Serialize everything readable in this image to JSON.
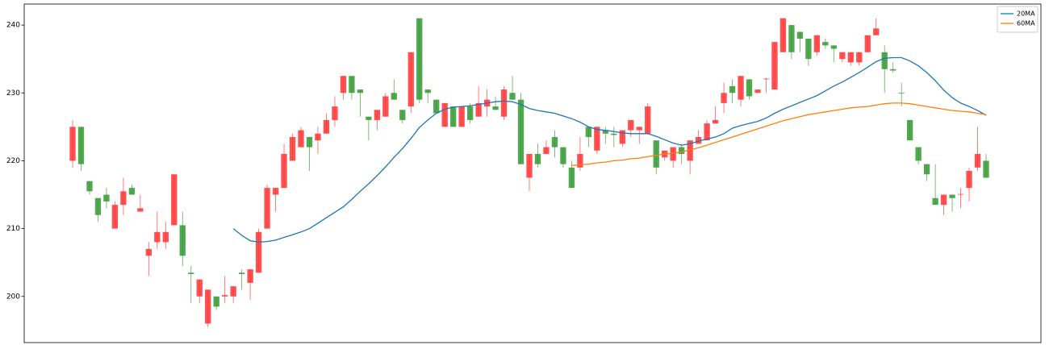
{
  "chart_data": {
    "type": "candlestick",
    "open": [
      220,
      225,
      217,
      214.5,
      215,
      210,
      213.5,
      216,
      212.5,
      206,
      208,
      208,
      210.5,
      210.5,
      203.5,
      200,
      196,
      200,
      200,
      200,
      203.5,
      202,
      203.5,
      210,
      215,
      216,
      220,
      222,
      223.5,
      223,
      224,
      226,
      230,
      232.5,
      230.5,
      226.5,
      226,
      226.5,
      230,
      227.5,
      228,
      241,
      230.5,
      229,
      225,
      228,
      225,
      228,
      226.5,
      228,
      228,
      226.5,
      230,
      229,
      217.5,
      221,
      221,
      223.5,
      222,
      219,
      219,
      225,
      221.5,
      224.5,
      224,
      222.5,
      224.5,
      224.5,
      224,
      223,
      220.5,
      220,
      222,
      220,
      222.5,
      223,
      225.5,
      228.5,
      231,
      229,
      232,
      230,
      232,
      230.5,
      236,
      240,
      239,
      238,
      236,
      237.5,
      237,
      235,
      234.5,
      234.5,
      236,
      238.5,
      236,
      233.5,
      230,
      226,
      222,
      219.5,
      214.5,
      213.5,
      215,
      215,
      216,
      219,
      220
    ],
    "high": [
      226,
      225,
      217,
      214.5,
      216,
      214,
      217.5,
      216.5,
      215,
      208,
      212.5,
      211,
      218,
      212.5,
      204.5,
      202.5,
      201,
      200,
      203,
      201.5,
      204,
      204,
      210,
      216.5,
      216,
      222.5,
      224,
      225,
      223.5,
      225,
      227,
      229.5,
      232.5,
      232.5,
      230.5,
      226.5,
      227.5,
      230,
      232,
      227.5,
      236,
      241,
      230.5,
      229,
      228.5,
      228,
      228,
      228.5,
      231,
      230.5,
      229.5,
      231,
      232.5,
      230,
      221,
      222.5,
      223,
      224.5,
      222,
      220,
      223.5,
      225,
      225,
      225,
      225,
      224.5,
      226,
      225,
      228.5,
      223,
      221.5,
      222,
      222.5,
      223,
      224.5,
      226,
      228,
      231.5,
      232,
      232.5,
      232,
      230.5,
      232.2,
      237.5,
      241,
      240,
      239,
      238,
      238.5,
      238,
      237,
      236,
      236,
      236,
      238.5,
      241,
      237,
      234.5,
      231.5,
      226,
      222,
      219.5,
      219.5,
      215,
      215,
      216,
      219,
      225,
      221
    ],
    "low": [
      219,
      218.5,
      215,
      211,
      213,
      210,
      212,
      215,
      212.5,
      203,
      207,
      207,
      210.5,
      204.5,
      199,
      199,
      195.5,
      198,
      199,
      199,
      201,
      199.5,
      203.5,
      210,
      212.5,
      216,
      220,
      222,
      218.5,
      221,
      224,
      225,
      229,
      229,
      226.5,
      223,
      224.5,
      226.5,
      229,
      225.5,
      227,
      228.5,
      228.5,
      227,
      225,
      225,
      225,
      225.5,
      226.5,
      226.5,
      227.5,
      226,
      229,
      219.5,
      215.5,
      219,
      221,
      220.5,
      219,
      216,
      218.5,
      222,
      221,
      222.5,
      222,
      222,
      223.5,
      222.5,
      224,
      218,
      220,
      219,
      219.5,
      218,
      222.5,
      223,
      225.5,
      227,
      228.5,
      228,
      229,
      230,
      230,
      230.5,
      236,
      235,
      236,
      234,
      235.5,
      236.5,
      234.5,
      234.5,
      234,
      234,
      236,
      238.5,
      230,
      233,
      228,
      223,
      219.5,
      217,
      213.5,
      212,
      212.5,
      213,
      214,
      218.5,
      217.5
    ],
    "close": [
      225,
      219.5,
      215.5,
      212,
      214,
      213.5,
      215.5,
      215,
      213,
      207,
      209.5,
      209.5,
      218,
      206,
      203.3,
      202.5,
      201,
      198.5,
      200.2,
      201.5,
      203.3,
      204,
      209.5,
      216,
      216,
      221,
      223.5,
      224.5,
      222,
      224,
      226,
      228,
      232.5,
      230,
      230,
      226,
      227.5,
      229.5,
      229,
      226,
      236,
      229,
      230,
      227,
      228.5,
      225,
      228,
      226,
      228.5,
      229,
      227.5,
      230.5,
      229,
      219.5,
      221,
      219.5,
      222,
      222,
      219.5,
      216,
      221,
      223.5,
      225,
      224,
      223.8,
      224.5,
      226,
      225,
      228,
      219,
      221.5,
      222,
      221,
      223,
      223.5,
      225.5,
      226,
      230,
      230,
      232.5,
      229.5,
      230.5,
      232.1,
      237.5,
      241,
      236,
      238,
      235,
      238.5,
      237,
      236.5,
      236,
      236,
      236,
      238.5,
      239.5,
      233.5,
      233.3,
      229.9,
      223,
      220,
      218,
      213.5,
      215,
      214.5,
      215.1,
      218.5,
      221,
      217.5
    ],
    "up_color": "#ff3333",
    "down_color": "#339933",
    "series": [
      {
        "name": "20MA",
        "color": "#1f77b4",
        "values": [
          null,
          null,
          null,
          null,
          null,
          null,
          null,
          null,
          null,
          null,
          null,
          null,
          null,
          null,
          null,
          null,
          null,
          null,
          null,
          210,
          209,
          208.2,
          208,
          208.1,
          208.3,
          208.7,
          209.1,
          209.5,
          210,
          210.8,
          211.6,
          212.4,
          213.2,
          214.3,
          215.5,
          216.6,
          217.8,
          219.1,
          220.5,
          221.8,
          223.3,
          224.9,
          226,
          227,
          227.6,
          227.9,
          228,
          228.1,
          228.3,
          228.5,
          228.7,
          228.8,
          228.7,
          228.3,
          227.7,
          227.4,
          227.2,
          227,
          226.6,
          226.2,
          225.7,
          225,
          224.6,
          224.5,
          224.3,
          224.1,
          224,
          224,
          224,
          223.6,
          223.1,
          222.6,
          222.3,
          222.5,
          222.9,
          223.2,
          223.5,
          224,
          224.8,
          225.2,
          225.5,
          225.8,
          226.3,
          227,
          227.6,
          228.1,
          228.6,
          229.1,
          229.6,
          230.3,
          231,
          231.6,
          232.3,
          233,
          233.8,
          234.6,
          235.1,
          235.2,
          235.2,
          234.7,
          234,
          233,
          231.8,
          230.4,
          229.3,
          228.5,
          228,
          227.4,
          226.7
        ]
      },
      {
        "name": "60MA",
        "color": "#ff7f0e",
        "values": [
          null,
          null,
          null,
          null,
          null,
          null,
          null,
          null,
          null,
          null,
          null,
          null,
          null,
          null,
          null,
          null,
          null,
          null,
          null,
          null,
          null,
          null,
          null,
          null,
          null,
          null,
          null,
          null,
          null,
          null,
          null,
          null,
          null,
          null,
          null,
          null,
          null,
          null,
          null,
          null,
          null,
          null,
          null,
          null,
          null,
          null,
          null,
          null,
          null,
          null,
          null,
          null,
          null,
          null,
          null,
          null,
          null,
          null,
          null,
          219.3,
          219.4,
          219.5,
          219.7,
          219.8,
          220,
          220.1,
          220.3,
          220.4,
          220.6,
          220.8,
          221,
          221.1,
          221.3,
          221.6,
          221.9,
          222.3,
          222.7,
          223.1,
          223.5,
          223.9,
          224.3,
          224.7,
          225.1,
          225.5,
          225.9,
          226.2,
          226.5,
          226.8,
          227,
          227.2,
          227.4,
          227.6,
          227.8,
          227.9,
          228,
          228.2,
          228.4,
          228.5,
          228.5,
          228.4,
          228.2,
          228,
          227.8,
          227.6,
          227.4,
          227.3,
          227.2,
          227,
          226.8
        ]
      }
    ],
    "ylim": [
      193.2,
      243.1
    ],
    "yticks": [
      200,
      210,
      220,
      230,
      240
    ],
    "legend": "upper right"
  }
}
